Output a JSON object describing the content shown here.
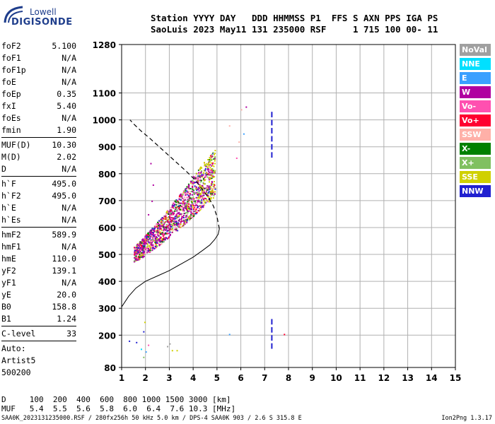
{
  "logo": {
    "brand": "Lowell",
    "name": "DIGISONDE"
  },
  "header": {
    "line1": "Station YYYY DAY   DDD HHMMSS P1  FFS S AXN PPS IGA PS",
    "line2": "SaoLuis 2023 May11 131 235000 RSF     1 715 100 00- 11"
  },
  "params": {
    "group1": [
      {
        "k": "foF2",
        "v": "5.100"
      },
      {
        "k": "foF1",
        "v": "N/A"
      },
      {
        "k": "foF1p",
        "v": "N/A"
      },
      {
        "k": "foE",
        "v": "N/A"
      },
      {
        "k": "foEp",
        "v": "0.35"
      },
      {
        "k": "fxI",
        "v": "5.40"
      },
      {
        "k": "foEs",
        "v": "N/A"
      },
      {
        "k": "fmin",
        "v": "1.90"
      }
    ],
    "group2": [
      {
        "k": "MUF(D)",
        "v": "10.30"
      },
      {
        "k": "M(D)",
        "v": "2.02"
      },
      {
        "k": "D",
        "v": "N/A"
      }
    ],
    "group3": [
      {
        "k": "h`F",
        "v": "495.0"
      },
      {
        "k": "h`F2",
        "v": "495.0"
      },
      {
        "k": "h`E",
        "v": "N/A"
      },
      {
        "k": "h`Es",
        "v": "N/A"
      }
    ],
    "group4": [
      {
        "k": "hmF2",
        "v": "589.9"
      },
      {
        "k": "hmF1",
        "v": "N/A"
      },
      {
        "k": "hmE",
        "v": "110.0"
      },
      {
        "k": "yF2",
        "v": "139.1"
      },
      {
        "k": "yF1",
        "v": "N/A"
      },
      {
        "k": "yE",
        "v": "20.0"
      },
      {
        "k": "B0",
        "v": "158.8"
      },
      {
        "k": "B1",
        "v": "1.24"
      }
    ],
    "group5": [
      {
        "k": "C-level",
        "v": "33"
      }
    ],
    "auto": [
      "Auto:",
      "Artist5",
      "500200"
    ]
  },
  "legend": [
    {
      "label": "NoVal",
      "color": "#a0a0a0"
    },
    {
      "label": "NNE",
      "color": "#00e0ff"
    },
    {
      "label": "E",
      "color": "#3aa0ff"
    },
    {
      "label": "W",
      "color": "#b000a0"
    },
    {
      "label": "Vo-",
      "color": "#ff50b0"
    },
    {
      "label": "Vo+",
      "color": "#ff0030"
    },
    {
      "label": "SSW",
      "color": "#ffb0a8"
    },
    {
      "label": "X-",
      "color": "#008000"
    },
    {
      "label": "X+",
      "color": "#80c060"
    },
    {
      "label": "SSE",
      "color": "#d0d000"
    },
    {
      "label": "NNW",
      "color": "#2020d0"
    }
  ],
  "footer": {
    "row1": "D     100  200  400  600  800 1000 1500 3000 [km]",
    "row2": "MUF   5.4  5.5  5.6  5.8  6.0  6.4  7.6 10.3 [MHz]"
  },
  "credit": "SAA0K_2023131235000.RSF / 280fx256h 50 kHz 5.0 km / DPS-4 SAA0K 903 / 2.6 S 315.8 E",
  "version": "Ion2Png 1.3.17",
  "chart_data": {
    "type": "scatter",
    "title": "",
    "xlabel": "",
    "ylabel": "",
    "xlim": [
      1,
      15
    ],
    "ylim": [
      80,
      1280
    ],
    "x_ticks": [
      1,
      2,
      3,
      4,
      5,
      6,
      7,
      8,
      9,
      10,
      11,
      12,
      13,
      14,
      15
    ],
    "y_ticks": [
      80,
      200,
      300,
      400,
      500,
      600,
      700,
      800,
      900,
      1000,
      1100,
      1280
    ],
    "grid": true,
    "profile_curve": {
      "x": [
        1.0,
        1.3,
        1.6,
        2.0,
        2.5,
        3.0,
        3.5,
        4.0,
        4.4,
        4.7,
        4.9,
        5.05,
        5.1
      ],
      "y": [
        305,
        345,
        375,
        400,
        420,
        440,
        465,
        490,
        515,
        535,
        555,
        575,
        595
      ]
    },
    "trace_curve": {
      "x": [
        5.1,
        5.0,
        4.85,
        4.65,
        4.4,
        4.1,
        3.7,
        3.2,
        2.7,
        2.2,
        1.8,
        1.5,
        1.35
      ],
      "y": [
        595,
        640,
        680,
        710,
        740,
        775,
        810,
        850,
        890,
        930,
        960,
        985,
        1000
      ]
    },
    "o_trace_band": {
      "x_start": 1.5,
      "x_end": 4.9,
      "y_start": 500,
      "y_end": 800,
      "spread": 70
    },
    "vertical_marks": [
      {
        "x": 7.3,
        "y_from": 870,
        "y_to": 1025,
        "color": "#2020d0"
      },
      {
        "x": 7.3,
        "y_from": 160,
        "y_to": 270,
        "color": "#2020d0"
      }
    ],
    "sparse_points": [
      {
        "x": 6.2,
        "y": 1050,
        "c": "#b000a0"
      },
      {
        "x": 6.0,
        "y": 1040,
        "c": "#ffb0a8"
      },
      {
        "x": 6.1,
        "y": 950,
        "c": "#3aa0ff"
      },
      {
        "x": 5.9,
        "y": 920,
        "c": "#ffb0a8"
      },
      {
        "x": 5.5,
        "y": 980,
        "c": "#ffb0a8"
      },
      {
        "x": 5.8,
        "y": 860,
        "c": "#ff50b0"
      },
      {
        "x": 2.2,
        "y": 840,
        "c": "#b000a0"
      },
      {
        "x": 2.3,
        "y": 760,
        "c": "#b000a0"
      },
      {
        "x": 2.25,
        "y": 700,
        "c": "#b000a0"
      },
      {
        "x": 2.1,
        "y": 650,
        "c": "#b000a0"
      },
      {
        "x": 5.5,
        "y": 205,
        "c": "#3aa0ff"
      },
      {
        "x": 7.8,
        "y": 205,
        "c": "#ff0030"
      },
      {
        "x": 1.3,
        "y": 180,
        "c": "#2020d0"
      },
      {
        "x": 1.6,
        "y": 175,
        "c": "#2020d0"
      },
      {
        "x": 1.8,
        "y": 150,
        "c": "#00e0ff"
      },
      {
        "x": 2.0,
        "y": 140,
        "c": "#3aa0ff"
      },
      {
        "x": 2.1,
        "y": 165,
        "c": "#ff50b0"
      },
      {
        "x": 1.9,
        "y": 120,
        "c": "#80c060"
      },
      {
        "x": 1.95,
        "y": 250,
        "c": "#d0d000"
      },
      {
        "x": 1.9,
        "y": 215,
        "c": "#2020d0"
      },
      {
        "x": 3.0,
        "y": 170,
        "c": "#a0a0a0"
      },
      {
        "x": 3.1,
        "y": 145,
        "c": "#d0d000"
      },
      {
        "x": 3.3,
        "y": 145,
        "c": "#d0d000"
      },
      {
        "x": 2.9,
        "y": 160,
        "c": "#a0a0a0"
      }
    ]
  }
}
